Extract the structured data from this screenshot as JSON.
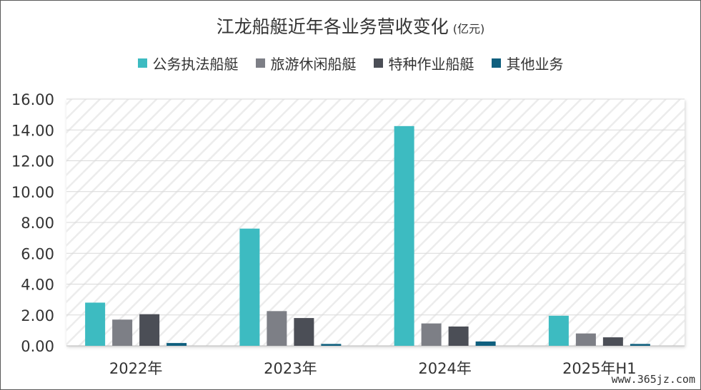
{
  "chart_data": {
    "type": "bar",
    "title": "江龙船艇近年各业务营收变化",
    "unit": "(亿元)",
    "categories": [
      "2022年",
      "2023年",
      "2024年",
      "2025年H1"
    ],
    "series": [
      {
        "name": "公务执法船艇",
        "color": "#3dbbc1",
        "values": [
          2.8,
          7.6,
          14.25,
          1.95
        ]
      },
      {
        "name": "旅游休闲船艇",
        "color": "#7d7f86",
        "values": [
          1.7,
          2.25,
          1.45,
          0.8
        ]
      },
      {
        "name": "特种作业船艇",
        "color": "#4b4e56",
        "values": [
          2.05,
          1.8,
          1.25,
          0.55
        ]
      },
      {
        "name": "其他业务",
        "color": "#0f5f7e",
        "values": [
          0.18,
          0.12,
          0.28,
          0.12
        ]
      }
    ],
    "y_ticks": [
      "0.00",
      "2.00",
      "4.00",
      "6.00",
      "8.00",
      "10.00",
      "12.00",
      "14.00",
      "16.00"
    ],
    "ylim": [
      0,
      16
    ],
    "grid": true,
    "legend_position": "top"
  },
  "watermark": "www.365jz.com"
}
